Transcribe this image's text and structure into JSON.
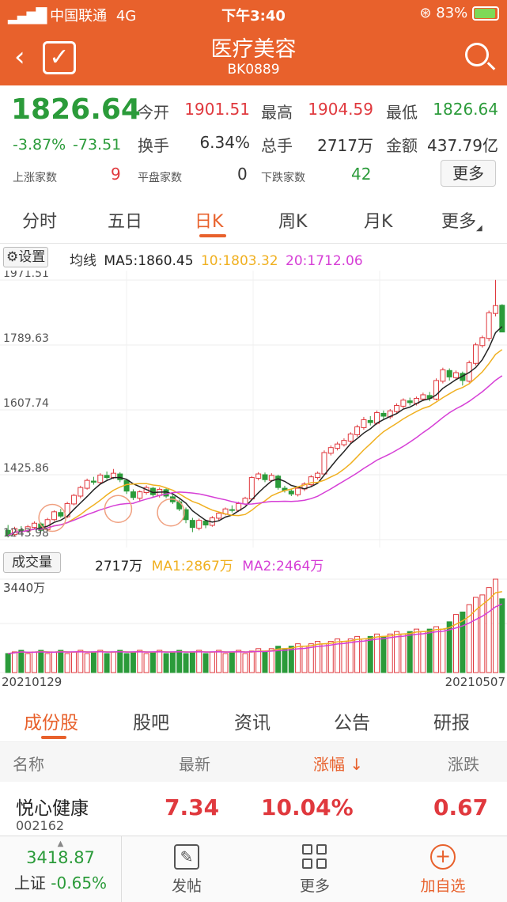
{
  "status": {
    "carrier": "中国联通",
    "network": "4G",
    "time": "下午3:40",
    "battery": "83%"
  },
  "header": {
    "title": "医疗美容",
    "code": "BK0889"
  },
  "quote": {
    "price": "1826.64",
    "pct": "-3.87%",
    "change": "-73.51",
    "open_label": "今开",
    "open": "1901.51",
    "high_label": "最高",
    "high": "1904.59",
    "low_label": "最低",
    "low": "1826.64",
    "turnover_label": "换手",
    "turnover": "6.34%",
    "volume_label": "总手",
    "volume": "2717万",
    "amount_label": "金额",
    "amount": "437.79亿",
    "up_label": "上涨家数",
    "up": "9",
    "flat_label": "平盘家数",
    "flat": "0",
    "down_label": "下跌家数",
    "down": "42",
    "more": "更多"
  },
  "ktabs": [
    "分时",
    "五日",
    "日K",
    "周K",
    "月K",
    "更多"
  ],
  "ma": {
    "settings": "设置",
    "label": "均线",
    "ma5": "MA5:1860.45",
    "ma10": "10:1803.32",
    "ma20": "20:1712.06"
  },
  "vol": {
    "label": "成交量",
    "value": "2717万",
    "ma1": "MA1:2867万",
    "ma2": "MA2:2464万",
    "max": "3440万"
  },
  "dates": {
    "start": "20210129",
    "end": "20210507"
  },
  "chart_data": {
    "type": "candlestick",
    "y_ticks": [
      1971.51,
      1789.63,
      1607.74,
      1425.86,
      1243.98
    ],
    "ylim": [
      1243.98,
      1971.51
    ],
    "vol_ylim": [
      0,
      3440
    ],
    "candles": [
      [
        1270,
        1255,
        1285,
        1250,
        "d"
      ],
      [
        1258,
        1275,
        1280,
        1252,
        "u"
      ],
      [
        1272,
        1268,
        1282,
        1262,
        "d"
      ],
      [
        1268,
        1280,
        1285,
        1265,
        "u"
      ],
      [
        1278,
        1290,
        1295,
        1272,
        "u"
      ],
      [
        1288,
        1270,
        1292,
        1266,
        "d"
      ],
      [
        1272,
        1300,
        1305,
        1268,
        "u"
      ],
      [
        1300,
        1322,
        1326,
        1296,
        "u"
      ],
      [
        1320,
        1310,
        1330,
        1305,
        "d"
      ],
      [
        1308,
        1345,
        1350,
        1304,
        "u"
      ],
      [
        1344,
        1368,
        1372,
        1340,
        "u"
      ],
      [
        1366,
        1390,
        1395,
        1360,
        "u"
      ],
      [
        1388,
        1410,
        1415,
        1384,
        "u"
      ],
      [
        1408,
        1405,
        1420,
        1398,
        "d"
      ],
      [
        1404,
        1425,
        1430,
        1400,
        "u"
      ],
      [
        1424,
        1418,
        1435,
        1412,
        "d"
      ],
      [
        1418,
        1430,
        1442,
        1414,
        "u"
      ],
      [
        1428,
        1412,
        1433,
        1405,
        "d"
      ],
      [
        1410,
        1380,
        1414,
        1372,
        "d"
      ],
      [
        1378,
        1362,
        1385,
        1355,
        "d"
      ],
      [
        1360,
        1378,
        1382,
        1350,
        "u"
      ],
      [
        1376,
        1390,
        1396,
        1370,
        "u"
      ],
      [
        1388,
        1370,
        1392,
        1364,
        "d"
      ],
      [
        1368,
        1385,
        1390,
        1362,
        "u"
      ],
      [
        1384,
        1366,
        1388,
        1360,
        "d"
      ],
      [
        1364,
        1350,
        1370,
        1344,
        "d"
      ],
      [
        1350,
        1330,
        1356,
        1324,
        "d"
      ],
      [
        1328,
        1300,
        1334,
        1290,
        "d"
      ],
      [
        1298,
        1278,
        1305,
        1265,
        "d"
      ],
      [
        1276,
        1298,
        1303,
        1270,
        "u"
      ],
      [
        1296,
        1285,
        1300,
        1276,
        "d"
      ],
      [
        1284,
        1305,
        1310,
        1280,
        "u"
      ],
      [
        1304,
        1318,
        1322,
        1298,
        "u"
      ],
      [
        1316,
        1330,
        1334,
        1312,
        "u"
      ],
      [
        1328,
        1326,
        1340,
        1320,
        "d"
      ],
      [
        1326,
        1345,
        1350,
        1322,
        "u"
      ],
      [
        1344,
        1360,
        1364,
        1340,
        "u"
      ],
      [
        1358,
        1418,
        1422,
        1354,
        "u"
      ],
      [
        1416,
        1428,
        1433,
        1410,
        "u"
      ],
      [
        1426,
        1412,
        1432,
        1405,
        "d"
      ],
      [
        1410,
        1424,
        1430,
        1406,
        "u"
      ],
      [
        1422,
        1390,
        1426,
        1384,
        "d"
      ],
      [
        1388,
        1382,
        1395,
        1376,
        "d"
      ],
      [
        1380,
        1372,
        1386,
        1366,
        "d"
      ],
      [
        1370,
        1388,
        1392,
        1365,
        "u"
      ],
      [
        1386,
        1400,
        1405,
        1380,
        "u"
      ],
      [
        1398,
        1420,
        1425,
        1394,
        "u"
      ],
      [
        1418,
        1430,
        1435,
        1412,
        "u"
      ],
      [
        1428,
        1488,
        1494,
        1424,
        "u"
      ],
      [
        1486,
        1502,
        1508,
        1480,
        "u"
      ],
      [
        1500,
        1512,
        1518,
        1494,
        "u"
      ],
      [
        1510,
        1522,
        1528,
        1505,
        "u"
      ],
      [
        1520,
        1540,
        1545,
        1514,
        "u"
      ],
      [
        1538,
        1560,
        1566,
        1532,
        "u"
      ],
      [
        1558,
        1580,
        1588,
        1552,
        "u"
      ],
      [
        1578,
        1572,
        1590,
        1564,
        "d"
      ],
      [
        1570,
        1600,
        1606,
        1566,
        "u"
      ],
      [
        1598,
        1590,
        1606,
        1582,
        "d"
      ],
      [
        1588,
        1605,
        1610,
        1582,
        "u"
      ],
      [
        1603,
        1620,
        1626,
        1598,
        "u"
      ],
      [
        1618,
        1635,
        1640,
        1612,
        "u"
      ],
      [
        1633,
        1628,
        1642,
        1620,
        "d"
      ],
      [
        1626,
        1640,
        1645,
        1620,
        "u"
      ],
      [
        1638,
        1650,
        1656,
        1632,
        "u"
      ],
      [
        1648,
        1640,
        1658,
        1632,
        "d"
      ],
      [
        1638,
        1690,
        1696,
        1634,
        "u"
      ],
      [
        1688,
        1720,
        1726,
        1682,
        "u"
      ],
      [
        1718,
        1700,
        1724,
        1690,
        "d"
      ],
      [
        1698,
        1712,
        1718,
        1692,
        "u"
      ],
      [
        1710,
        1690,
        1715,
        1676,
        "d"
      ],
      [
        1688,
        1740,
        1746,
        1684,
        "u"
      ],
      [
        1738,
        1790,
        1796,
        1732,
        "u"
      ],
      [
        1788,
        1810,
        1816,
        1782,
        "u"
      ],
      [
        1808,
        1880,
        1886,
        1800,
        "u"
      ],
      [
        1878,
        1900,
        1972,
        1870,
        "u"
      ],
      [
        1901,
        1826,
        1904,
        1826,
        "d"
      ]
    ]
  },
  "subtabs": [
    "成份股",
    "股吧",
    "资讯",
    "公告",
    "研报"
  ],
  "list_header": {
    "name": "名称",
    "latest": "最新",
    "pct": "涨幅 ↓",
    "change": "涨跌"
  },
  "rows": [
    {
      "name": "悦心健康",
      "code": "002162",
      "latest": "7.34",
      "pct": "10.04%",
      "change": "0.67"
    }
  ],
  "bottom": {
    "index_value": "3418.87",
    "index_name": "上证",
    "index_pct": "-0.65%",
    "post": "发帖",
    "more": "更多",
    "add": "加自选"
  }
}
